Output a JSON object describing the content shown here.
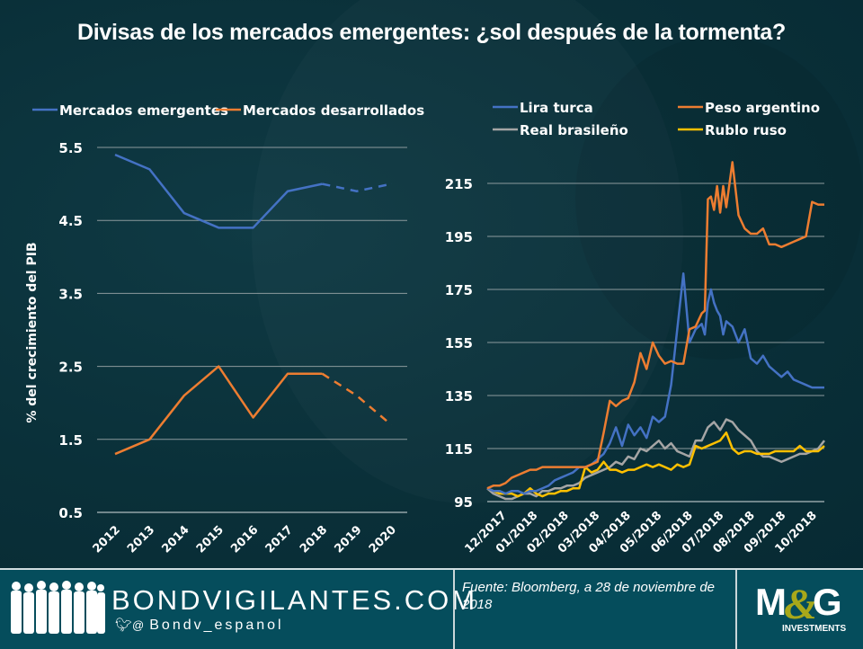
{
  "title": "Divisas de los mercados emergentes: ¿sol después de la tormenta?",
  "colors": {
    "background": "#0a3039",
    "blue": "#4472c4",
    "orange": "#ed7d31",
    "gray": "#a5a5a5",
    "yellow": "#ffc000",
    "grid": "#8c9a9d",
    "footer": "#054d5c",
    "logo_accent": "#a8a81a"
  },
  "footer": {
    "brand": "BONDVIGILANTES.COM",
    "handle": "Bondv_espanol",
    "handle_prefix": "@",
    "source": "Fuente: Bloomberg, a 28 de noviembre de 2018",
    "logo_main": "M&G",
    "logo_sub": "INVESTMENTS"
  },
  "chart_data": [
    {
      "type": "line",
      "title": "",
      "ylabel": "% del crecimiento del PIB",
      "xlabel": "",
      "ylim": [
        0.5,
        5.5
      ],
      "yticks": [
        "0.5",
        "1.5",
        "2.5",
        "3.5",
        "4.5",
        "5.5"
      ],
      "ytick_values": [
        0.5,
        1.5,
        2.5,
        3.5,
        4.5,
        5.5
      ],
      "categories": [
        "2012",
        "2013",
        "2014",
        "2015",
        "2016",
        "2017",
        "2018",
        "2019",
        "2020"
      ],
      "forecast_from_index": 6,
      "legend_position": "top",
      "grid": true,
      "series": [
        {
          "name": "Mercados emergentes",
          "color": "#4472c4",
          "values": [
            5.4,
            5.2,
            4.6,
            4.4,
            4.4,
            4.9,
            5.0,
            4.9,
            5.0
          ]
        },
        {
          "name": "Mercados desarrollados",
          "color": "#ed7d31",
          "values": [
            1.3,
            1.5,
            2.1,
            2.5,
            1.8,
            2.4,
            2.4,
            2.1,
            1.7
          ]
        }
      ]
    },
    {
      "type": "line",
      "title": "",
      "xlabel": "",
      "ylabel": "",
      "ylim": [
        95,
        215
      ],
      "yticks": [
        "95",
        "115",
        "135",
        "155",
        "175",
        "195",
        "215"
      ],
      "ytick_values": [
        95,
        115,
        135,
        155,
        175,
        195,
        215
      ],
      "xticks": [
        "12/2017",
        "01/2018",
        "02/2018",
        "03/2018",
        "04/2018",
        "05/2018",
        "06/2018",
        "07/2018",
        "08/2018",
        "09/2018",
        "10/2018"
      ],
      "x_range_months": [
        0,
        11
      ],
      "legend_position": "top",
      "grid": true,
      "series": [
        {
          "name": "Lira turca",
          "color": "#4472c4",
          "x": [
            0,
            0.2,
            0.4,
            0.6,
            0.8,
            1.0,
            1.2,
            1.4,
            1.6,
            1.8,
            2.0,
            2.2,
            2.4,
            2.6,
            2.8,
            3.0,
            3.2,
            3.4,
            3.6,
            3.8,
            4.0,
            4.2,
            4.4,
            4.6,
            4.8,
            5.0,
            5.2,
            5.4,
            5.6,
            5.8,
            6.0,
            6.2,
            6.4,
            6.6,
            6.8,
            7.0,
            7.1,
            7.2,
            7.3,
            7.4,
            7.5,
            7.6,
            7.7,
            7.8,
            8.0,
            8.2,
            8.4,
            8.6,
            8.8,
            9.0,
            9.2,
            9.4,
            9.6,
            9.8,
            10.0,
            10.2,
            10.4,
            10.6,
            10.8,
            11.0
          ],
          "values": [
            100,
            99,
            99,
            98,
            99,
            99,
            98,
            99,
            99,
            100,
            101,
            103,
            104,
            105,
            106,
            108,
            108,
            109,
            111,
            113,
            117,
            123,
            116,
            124,
            120,
            123,
            119,
            127,
            125,
            127,
            139,
            160,
            181,
            155,
            160,
            162,
            158,
            170,
            175,
            170,
            167,
            165,
            158,
            163,
            161,
            155,
            160,
            149,
            147,
            150,
            146,
            144,
            142,
            144,
            141,
            140,
            139,
            138,
            138,
            138
          ]
        },
        {
          "name": "Peso argentino",
          "color": "#ed7d31",
          "x": [
            0,
            0.2,
            0.4,
            0.6,
            0.8,
            1.0,
            1.2,
            1.4,
            1.6,
            1.8,
            2.0,
            2.2,
            2.4,
            2.6,
            2.8,
            3.0,
            3.2,
            3.4,
            3.6,
            3.8,
            4.0,
            4.2,
            4.4,
            4.6,
            4.8,
            5.0,
            5.2,
            5.4,
            5.6,
            5.8,
            6.0,
            6.2,
            6.4,
            6.6,
            6.8,
            7.0,
            7.1,
            7.2,
            7.3,
            7.4,
            7.5,
            7.6,
            7.7,
            7.8,
            8.0,
            8.2,
            8.4,
            8.6,
            8.8,
            9.0,
            9.2,
            9.4,
            9.6,
            9.8,
            10.0,
            10.2,
            10.4,
            10.6,
            10.8,
            11.0
          ],
          "values": [
            100,
            101,
            101,
            102,
            104,
            105,
            106,
            107,
            107,
            108,
            108,
            108,
            108,
            108,
            108,
            108,
            108,
            109,
            110,
            121,
            133,
            131,
            133,
            134,
            140,
            151,
            145,
            155,
            150,
            147,
            148,
            147,
            147,
            160,
            161,
            166,
            167,
            209,
            210,
            205,
            214,
            204,
            214,
            206,
            223,
            203,
            198,
            196,
            196,
            198,
            192,
            192,
            191,
            192,
            193,
            194,
            195,
            208,
            207,
            207
          ]
        },
        {
          "name": "Real brasileño",
          "color": "#a5a5a5",
          "x": [
            0,
            0.2,
            0.4,
            0.6,
            0.8,
            1.0,
            1.2,
            1.4,
            1.6,
            1.8,
            2.0,
            2.2,
            2.4,
            2.6,
            2.8,
            3.0,
            3.2,
            3.4,
            3.6,
            3.8,
            4.0,
            4.2,
            4.4,
            4.6,
            4.8,
            5.0,
            5.2,
            5.4,
            5.6,
            5.8,
            6.0,
            6.2,
            6.4,
            6.6,
            6.8,
            7.0,
            7.2,
            7.4,
            7.6,
            7.8,
            8.0,
            8.2,
            8.4,
            8.6,
            8.8,
            9.0,
            9.2,
            9.4,
            9.6,
            9.8,
            10.0,
            10.2,
            10.4,
            10.6,
            10.8,
            11.0
          ],
          "values": [
            100,
            98,
            97,
            96,
            96,
            97,
            98,
            98,
            97,
            99,
            99,
            100,
            100,
            101,
            101,
            102,
            104,
            105,
            106,
            107,
            108,
            110,
            109,
            112,
            111,
            115,
            114,
            116,
            118,
            115,
            117,
            114,
            113,
            112,
            118,
            118,
            123,
            125,
            122,
            126,
            125,
            122,
            120,
            118,
            114,
            112,
            112,
            111,
            110,
            111,
            112,
            113,
            113,
            114,
            115,
            118
          ]
        },
        {
          "name": "Rublo ruso",
          "color": "#ffc000",
          "x": [
            0,
            0.2,
            0.4,
            0.6,
            0.8,
            1.0,
            1.2,
            1.4,
            1.6,
            1.8,
            2.0,
            2.2,
            2.4,
            2.6,
            2.8,
            3.0,
            3.2,
            3.4,
            3.6,
            3.8,
            4.0,
            4.2,
            4.4,
            4.6,
            4.8,
            5.0,
            5.2,
            5.4,
            5.6,
            5.8,
            6.0,
            6.2,
            6.4,
            6.6,
            6.8,
            7.0,
            7.2,
            7.4,
            7.6,
            7.8,
            8.0,
            8.2,
            8.4,
            8.6,
            8.8,
            9.0,
            9.2,
            9.4,
            9.6,
            9.8,
            10.0,
            10.2,
            10.4,
            10.6,
            10.8,
            11.0
          ],
          "values": [
            100,
            99,
            98,
            98,
            98,
            97,
            98,
            100,
            98,
            97,
            98,
            98,
            99,
            99,
            100,
            100,
            108,
            106,
            107,
            110,
            107,
            107,
            106,
            107,
            107,
            108,
            109,
            108,
            109,
            108,
            107,
            109,
            108,
            109,
            116,
            115,
            116,
            117,
            118,
            121,
            115,
            113,
            114,
            114,
            113,
            113,
            113,
            114,
            114,
            114,
            114,
            116,
            114,
            114,
            114,
            116
          ]
        }
      ]
    }
  ]
}
